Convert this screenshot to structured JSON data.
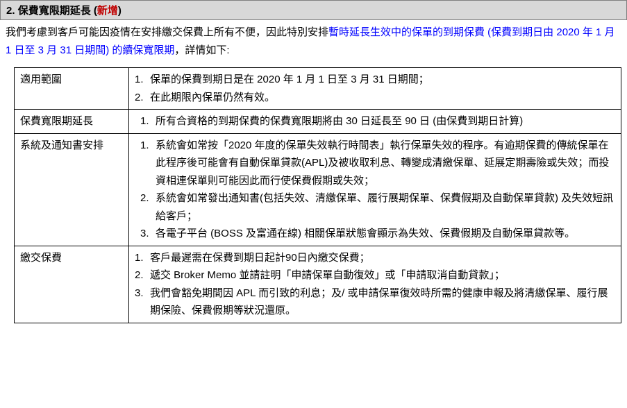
{
  "header": {
    "number": "2.",
    "title": "保費寬限期延長",
    "tag_open": " (",
    "tag_text": "新增",
    "tag_close": ")"
  },
  "intro": {
    "part1": "我們考慮到客戶可能因疫情在安排繳交保費上所有不便，因此特別安排",
    "highlight1": "暫時延長生效中的保單的到期保費 (保費到期日由 2020 年 1 月 1 日至 3 月 31 日期間) 的續保寬限期",
    "part2": "，詳情如下:"
  },
  "rows": [
    {
      "label": "適用範圍",
      "items": [
        "保單的保費到期日是在 2020 年 1 月 1 日至 3 月 31 日期間；",
        "在此期限內保單仍然有效。"
      ]
    },
    {
      "label": "保費寬限期延長",
      "items": [
        "所有合資格的到期保費的保費寬限期將由 30 日延長至 90 日 (由保費到期日計算)"
      ],
      "indent": true
    },
    {
      "label": "系統及通知書安排",
      "items": [
        "系統會如常按「2020 年度的保單失效執行時間表」執行保單失效的程序。有逾期保費的傳統保單在此程序後可能會有自動保單貸款(APL)及被收取利息、轉變成清繳保單、延展定期壽險或失效；而投資相連保單則可能因此而行使保費假期或失效；",
        "系統會如常發出通知書(包括失效、清繳保單、履行展期保單、保費假期及自動保單貸款) 及失效短訊給客戶；",
        "各電子平台 (BOSS 及富通在線) 相關保單狀態會顯示為失效、保費假期及自動保單貸款等。"
      ],
      "indent": true
    },
    {
      "label": "繳交保費",
      "items": [
        "客戶最遲需在保費到期日起計90日內繳交保費；",
        "遞交 Broker Memo 並請註明「申請保單自動復效」或「申請取消自動貸款」；",
        "我們會豁免期間因 APL 而引致的利息；及/ 或申請保單復效時所需的健康申報及將清繳保單、履行展期保險、保費假期等狀況還原。"
      ]
    }
  ]
}
